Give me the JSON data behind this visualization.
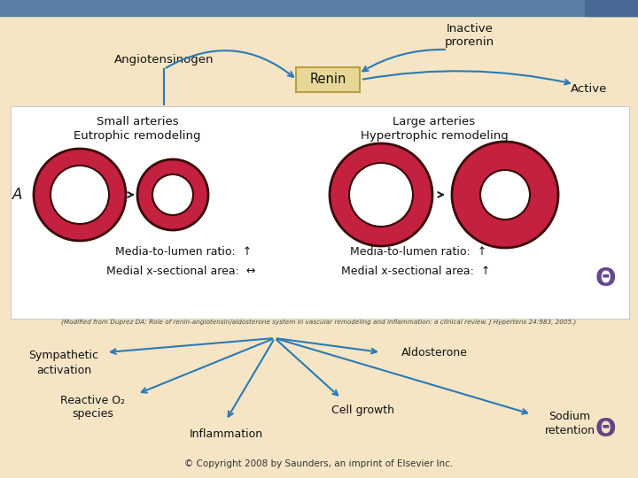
{
  "bg_color": "#f5e5c5",
  "top_bar_color": "#5b7fa6",
  "white_box_color": "#ffffff",
  "white_box_border": "#cccccc",
  "arrow_color": "#2a7ab5",
  "arrow_color_black": "#222222",
  "renin_box_facecolor": "#e8d898",
  "renin_box_edgecolor": "#b8a040",
  "donut_fill_color": "#c42040",
  "donut_edge_color": "#3a0808",
  "donut_white": "#ffffff",
  "text_color": "#111111",
  "citation_color": "#444444",
  "copyright_text": "© Copyright 2008 by Saunders, an imprint of Elsevier Inc.",
  "citation_text": "(Modified from Duprez DA: Role of renin-angiotensin/aldosterone system in vascular remodeling and inflammation: a clinical review. J Hypertens 24:983, 2005.)",
  "angiotensinogen_label": "Angiotensinogen",
  "inactive_prorenin_label": "Inactive\nprorenin",
  "renin_label": "Renin",
  "active_label": "Active",
  "small_arteries_label": "Small arteries\nEutrophic remodeling",
  "large_arteries_label": "Large arteries\nHypertrophic remodeling",
  "media_lumen_left": "Media-to-lumen ratio:  ↑",
  "medial_x_left": "Medial x-sectional area:  ↔",
  "media_lumen_right": "Media-to-lumen ratio:  ↑",
  "medial_x_right": "Medial x-sectional area:  ↑",
  "sympathetic_label": "Sympathetic\nactivation",
  "reactive_label": "Reactive O₂\nspecies",
  "inflammation_label": "Inflammation",
  "aldosterone_label": "Aldosterone",
  "cell_growth_label": "Cell growth",
  "sodium_label": "Sodium\nretention",
  "icon_color": "#4a2878"
}
